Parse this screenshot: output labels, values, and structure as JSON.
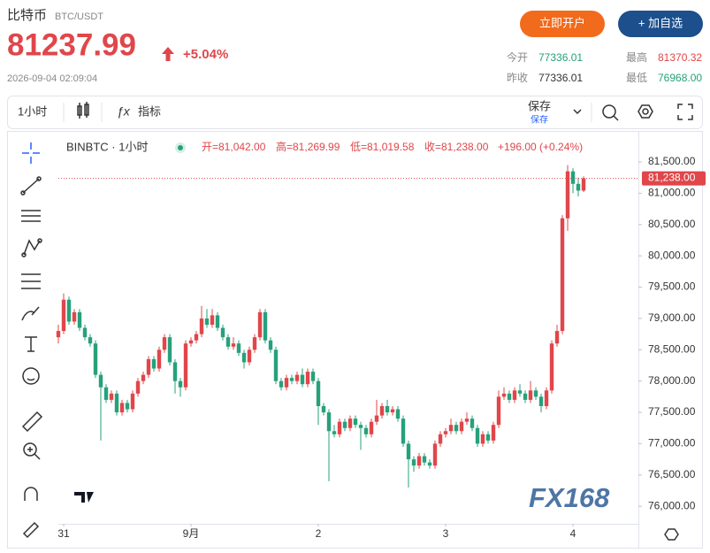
{
  "header": {
    "name": "比特币",
    "pair": "BTC/USDT",
    "price": 81237.99,
    "change": "+5.04%",
    "time": "2026-09-04 02:09:04",
    "open_btn": "立即开户",
    "watch_btn": "+ 加自选",
    "stats": [
      {
        "label": "今开",
        "value": 77336.01
      },
      {
        "label": "最高",
        "value": 81370.32
      },
      {
        "label": "昨收",
        "value": 77336.01
      },
      {
        "label": "最低",
        "value": "76968.00"
      }
    ]
  },
  "toolbar": {
    "interval": "1小时",
    "indicators": "指标",
    "save": "保存",
    "save_sub": "保存"
  },
  "chart_data": {
    "type": "candlestick",
    "symbol": "BINBTC · 1小时",
    "legend": [
      "开=81,042.00",
      "高=81,269.99",
      "低=81,019.58",
      "收=81,238.00",
      "+196.00 (+0.24%)"
    ],
    "last_label": "81,238.00",
    "watermark": "FX168",
    "up_color": "#e0464a",
    "down_color": "#26a17b",
    "xlim": [
      -1,
      108.33
    ],
    "ylim": [
      75720,
      81995
    ],
    "xticks": [
      {
        "value": 0,
        "label": "31"
      },
      {
        "value": 24,
        "label": "9月"
      },
      {
        "value": 48,
        "label": "2"
      },
      {
        "value": 72,
        "label": "3"
      },
      {
        "value": 96,
        "label": "4"
      }
    ],
    "yticks": [
      {
        "value": 76000,
        "label": "76,000.00"
      },
      {
        "value": 76500,
        "label": "76,500.00"
      },
      {
        "value": 77000,
        "label": "77,000.00"
      },
      {
        "value": 77500,
        "label": "77,500.00"
      },
      {
        "value": 78000,
        "label": "78,000.00"
      },
      {
        "value": 78500,
        "label": "78,500.00"
      },
      {
        "value": 79000,
        "label": "79,000.00"
      },
      {
        "value": 79500,
        "label": "79,500.00"
      },
      {
        "value": 80000,
        "label": "80,000.00"
      },
      {
        "value": 80500,
        "label": "80,500.00"
      },
      {
        "value": 81000,
        "label": "81,000.00"
      },
      {
        "value": 81500,
        "label": "81,500.00"
      }
    ],
    "x": [
      -1,
      0,
      1,
      2,
      3,
      4,
      5,
      6,
      7,
      8,
      9,
      10,
      11,
      12,
      13,
      14,
      15,
      16,
      17,
      18,
      19,
      20,
      21,
      22,
      23,
      24,
      25,
      26,
      27,
      28,
      29,
      30,
      31,
      32,
      33,
      34,
      35,
      36,
      37,
      38,
      39,
      40,
      41,
      42,
      43,
      44,
      45,
      46,
      47,
      48,
      49,
      50,
      51,
      52,
      53,
      54,
      55,
      56,
      57,
      58,
      59,
      60,
      61,
      62,
      63,
      64,
      65,
      66,
      67,
      68,
      69,
      70,
      71,
      72,
      73,
      74,
      75,
      76,
      77,
      78,
      79,
      80,
      81,
      82,
      83,
      84,
      85,
      86,
      87,
      88,
      89,
      90,
      91,
      92,
      93,
      94,
      95,
      96,
      97,
      98
    ],
    "open": [
      78700,
      78800,
      79300,
      78950,
      79100,
      78850,
      78700,
      78600,
      78100,
      77900,
      77700,
      77800,
      77500,
      77650,
      77550,
      77800,
      78000,
      78100,
      78350,
      78200,
      78500,
      78700,
      78300,
      78000,
      77900,
      78600,
      78650,
      78750,
      79000,
      78900,
      79050,
      78850,
      78700,
      78550,
      78600,
      78450,
      78300,
      78500,
      78700,
      79100,
      78650,
      78500,
      78000,
      77900,
      78050,
      78000,
      78100,
      77950,
      78150,
      78000,
      77600,
      77500,
      77200,
      77150,
      77350,
      77250,
      77400,
      77300,
      77250,
      77150,
      77350,
      77450,
      77600,
      77500,
      77550,
      77400,
      77000,
      76750,
      76650,
      76800,
      76700,
      76650,
      77000,
      77150,
      77200,
      77300,
      77200,
      77350,
      77400,
      77250,
      77000,
      77150,
      77050,
      77300,
      77750,
      77800,
      77700,
      77850,
      77800,
      77700,
      77850,
      77750,
      77600,
      77850,
      78600,
      78800,
      80600,
      81350,
      81150,
      81042
    ],
    "high": [
      78900,
      79400,
      79350,
      79150,
      79150,
      78900,
      78750,
      78650,
      78150,
      77950,
      77850,
      77850,
      77700,
      77700,
      77850,
      78050,
      78150,
      78400,
      78400,
      78550,
      78750,
      78750,
      78350,
      78050,
      78650,
      78700,
      78800,
      79200,
      79150,
      79150,
      79100,
      78900,
      78750,
      78700,
      78650,
      78500,
      78550,
      78750,
      79150,
      79150,
      78700,
      78550,
      78050,
      78100,
      78100,
      78150,
      78200,
      78200,
      78200,
      78050,
      77650,
      77550,
      77300,
      77400,
      77400,
      77450,
      77450,
      77350,
      77300,
      77400,
      77700,
      77650,
      77700,
      77600,
      77600,
      77450,
      77050,
      76800,
      76850,
      76850,
      76750,
      77050,
      77200,
      77250,
      77400,
      77350,
      77400,
      77500,
      77450,
      77300,
      77200,
      77200,
      77350,
      77850,
      77900,
      77850,
      77900,
      77950,
      77850,
      78000,
      77900,
      77800,
      77900,
      78650,
      78900,
      80650,
      81450,
      81400,
      81250,
      81269.99
    ],
    "low": [
      78600,
      78750,
      78900,
      78900,
      78800,
      78650,
      78550,
      78050,
      77050,
      77650,
      77650,
      77450,
      77450,
      77500,
      77500,
      77750,
      77950,
      78050,
      78150,
      78150,
      78450,
      78250,
      77800,
      77750,
      77850,
      78550,
      78600,
      78700,
      78850,
      78850,
      78800,
      78650,
      78500,
      78500,
      78400,
      78200,
      78250,
      78450,
      78650,
      78600,
      78450,
      77950,
      77850,
      77850,
      77950,
      77950,
      77900,
      77900,
      77950,
      77300,
      77450,
      76400,
      77100,
      77100,
      77200,
      77200,
      77250,
      76900,
      77100,
      77100,
      77300,
      77400,
      77450,
      77450,
      77350,
      76950,
      76300,
      76550,
      76600,
      76650,
      76600,
      76600,
      76950,
      77100,
      77150,
      77150,
      77150,
      77300,
      77200,
      76950,
      76950,
      77000,
      77000,
      77250,
      77700,
      77650,
      77650,
      77750,
      77650,
      77650,
      77700,
      77500,
      77550,
      77800,
      78550,
      78750,
      80400,
      81000,
      80950,
      81019.58
    ],
    "close": [
      78800,
      79300,
      78950,
      79100,
      78850,
      78700,
      78600,
      78100,
      77900,
      77700,
      77800,
      77500,
      77650,
      77550,
      77800,
      78000,
      78100,
      78350,
      78200,
      78500,
      78700,
      78300,
      78000,
      77900,
      78600,
      78650,
      78750,
      79000,
      78900,
      79050,
      78850,
      78700,
      78550,
      78600,
      78450,
      78300,
      78500,
      78700,
      79100,
      78650,
      78500,
      78000,
      77900,
      78050,
      78000,
      78100,
      77950,
      78150,
      78000,
      77600,
      77500,
      77200,
      77150,
      77350,
      77250,
      77400,
      77300,
      77250,
      77150,
      77350,
      77450,
      77600,
      77500,
      77550,
      77400,
      77000,
      76750,
      76650,
      76800,
      76700,
      76650,
      77000,
      77150,
      77200,
      77300,
      77200,
      77350,
      77400,
      77250,
      77000,
      77150,
      77050,
      77300,
      77750,
      77800,
      77700,
      77850,
      77800,
      77700,
      77850,
      77750,
      77600,
      77850,
      78600,
      78800,
      80600,
      81350,
      81150,
      81042,
      81238
    ]
  }
}
